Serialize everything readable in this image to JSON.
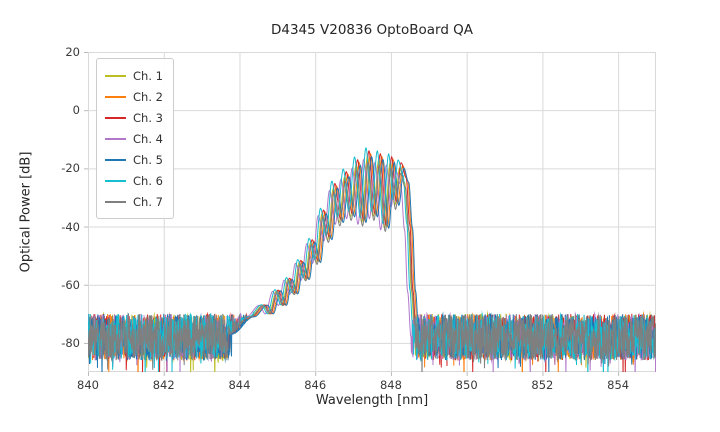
{
  "figure": {
    "title": "D4345 V20836 OptoBoard QA",
    "xlabel": "Wavelength [nm]",
    "ylabel": "Optical Power [dB]"
  },
  "chart_data": {
    "type": "line",
    "title": "D4345 V20836 OptoBoard QA",
    "xlabel": "Wavelength [nm]",
    "ylabel": "Optical Power [dB]",
    "xlim": [
      840,
      855
    ],
    "ylim": [
      -90,
      20
    ],
    "xticks": [
      840,
      842,
      844,
      846,
      848,
      850,
      852,
      854
    ],
    "yticks": [
      20,
      0,
      -20,
      -40,
      -60,
      -80
    ],
    "grid": true,
    "grid_color": "#d9d9d9",
    "legend_position": "upper left",
    "sample_step": 0.01,
    "noise_floor": {
      "mean": -78,
      "spread": 8,
      "deep_spike_prob": 0.05,
      "deep_spike_extra": 9
    },
    "signal_envelope": [
      [
        843.7,
        -77
      ],
      [
        844.3,
        -71
      ],
      [
        844.65,
        -67
      ],
      [
        844.8,
        -70
      ],
      [
        845.0,
        -62
      ],
      [
        845.15,
        -67
      ],
      [
        845.3,
        -58
      ],
      [
        845.45,
        -63
      ],
      [
        845.6,
        -52
      ],
      [
        845.75,
        -58
      ],
      [
        845.9,
        -45
      ],
      [
        846.05,
        -52
      ],
      [
        846.2,
        -35
      ],
      [
        846.35,
        -44
      ],
      [
        846.5,
        -26
      ],
      [
        846.65,
        -38
      ],
      [
        846.8,
        -22
      ],
      [
        846.95,
        -36
      ],
      [
        847.1,
        -18
      ],
      [
        847.25,
        -38
      ],
      [
        847.4,
        -15
      ],
      [
        847.55,
        -36
      ],
      [
        847.7,
        -16
      ],
      [
        847.85,
        -40
      ],
      [
        848.0,
        -17
      ],
      [
        848.12,
        -32
      ],
      [
        848.25,
        -19
      ],
      [
        848.38,
        -24
      ],
      [
        848.48,
        -40
      ],
      [
        848.56,
        -62
      ],
      [
        848.65,
        -78
      ]
    ],
    "series": [
      {
        "name": "Ch. 1",
        "color": "#bcbd22",
        "shift": -0.02,
        "peak_adjust": -1
      },
      {
        "name": "Ch. 2",
        "color": "#ff7f0e",
        "shift": 0.06,
        "peak_adjust": 0
      },
      {
        "name": "Ch. 3",
        "color": "#d62728",
        "shift": 0.02,
        "peak_adjust": 1
      },
      {
        "name": "Ch. 4",
        "color": "#b177c9",
        "shift": -0.12,
        "peak_adjust": -2
      },
      {
        "name": "Ch. 5",
        "color": "#1f77b4",
        "shift": 0.09,
        "peak_adjust": -1
      },
      {
        "name": "Ch. 6",
        "color": "#17becf",
        "shift": -0.06,
        "peak_adjust": 2
      },
      {
        "name": "Ch. 7",
        "color": "#7f7f7f",
        "shift": 0.0,
        "peak_adjust": -3
      }
    ]
  }
}
